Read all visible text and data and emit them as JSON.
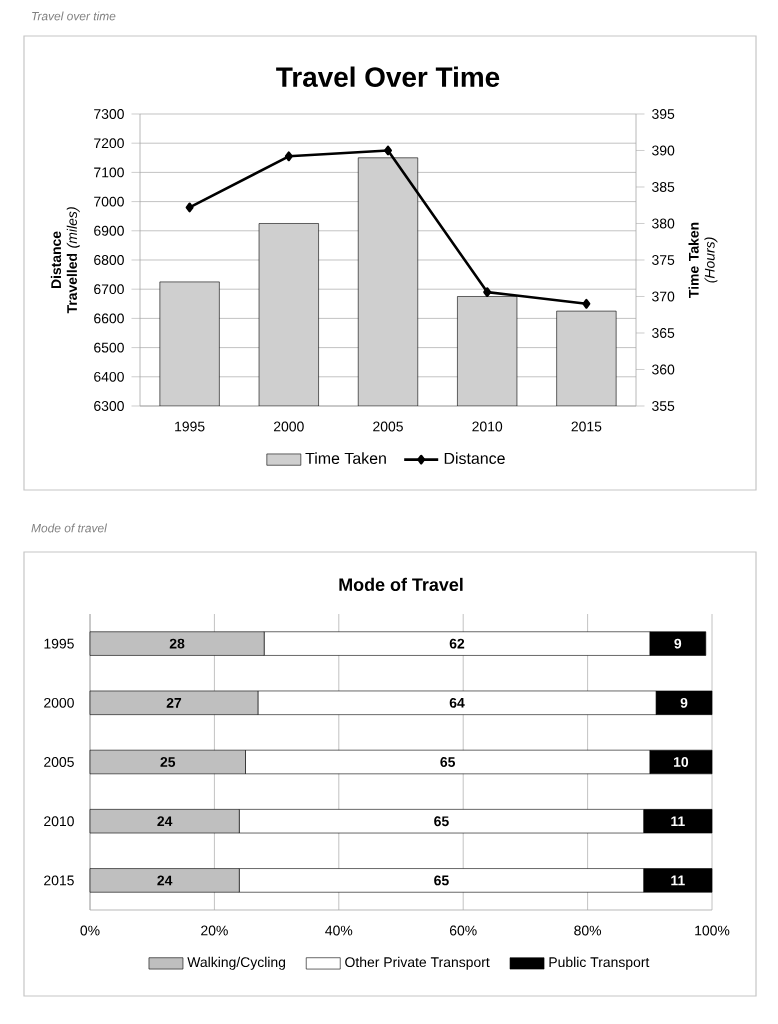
{
  "chart_data": [
    {
      "type": "bar",
      "title": "Travel Over Time",
      "annotations": [
        "Travel over time"
      ],
      "ylabel": "**Distance Travelled** *(miles)*",
      "y2label": "**Time Taken** *(Hours)*",
      "categories": [
        "1995",
        "2000",
        "2005",
        "2010",
        "2015"
      ],
      "series": [
        {
          "name": "Time Taken",
          "type": "bar",
          "axis": "y2",
          "color": "#cfcfcf",
          "values": [
            372,
            380,
            389,
            370,
            368
          ]
        },
        {
          "name": "Distance",
          "type": "line",
          "color": "#000000",
          "marker": "diamond",
          "values": [
            6980,
            7155,
            7175,
            6690,
            6650
          ]
        }
      ],
      "ylim": [
        6300,
        7300
      ],
      "yticks": [
        6300,
        6400,
        6500,
        6600,
        6700,
        6800,
        6900,
        7000,
        7100,
        7200,
        7300
      ],
      "y2lim": [
        355,
        395
      ],
      "y2ticks": [
        355,
        360,
        365,
        370,
        375,
        380,
        385,
        390,
        395
      ],
      "grid": "y",
      "legend": "bottom"
    },
    {
      "type": "bar",
      "title": "Mode of Travel",
      "annotations": [
        "Mode of travel"
      ],
      "orientation": "horizontal",
      "stacked": true,
      "data_labels": true,
      "categories": [
        "1995",
        "2000",
        "2005",
        "2010",
        "2015"
      ],
      "series": [
        {
          "name": "Walking/Cycling",
          "color": "#bfbfbf",
          "values": [
            28,
            27,
            25,
            24,
            24
          ]
        },
        {
          "name": "Other Private Transport",
          "color": "#ffffff",
          "values": [
            62,
            64,
            65,
            65,
            65
          ]
        },
        {
          "name": "Public Transport",
          "color": "#000000",
          "values": [
            9,
            9,
            10,
            11,
            11
          ]
        }
      ],
      "xlim": [
        0,
        100
      ],
      "xticks": [
        {
          "value": 0,
          "label": "0%"
        },
        {
          "value": 20,
          "label": "20%"
        },
        {
          "value": 40,
          "label": "40%"
        },
        {
          "value": 60,
          "label": "60%"
        },
        {
          "value": 80,
          "label": "80%"
        },
        {
          "value": 100,
          "label": "100%"
        }
      ],
      "grid": "x",
      "legend": "bottom"
    }
  ]
}
